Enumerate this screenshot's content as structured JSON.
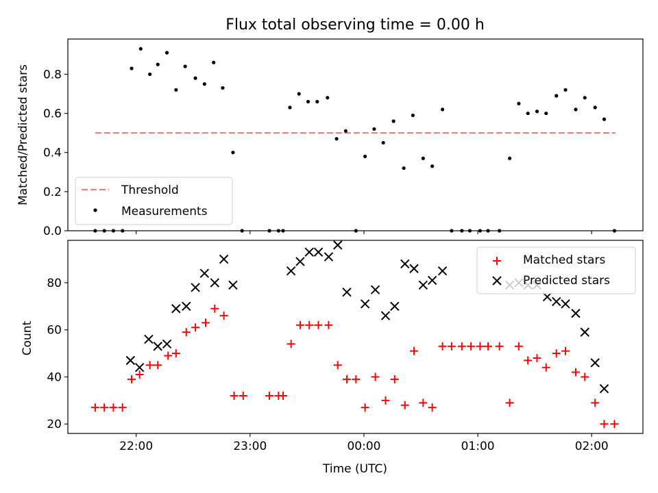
{
  "chart_data": [
    {
      "type": "scatter",
      "title": "Flux total observing time = 0.00 h",
      "xlabel": "",
      "ylabel": "Matched/Predicted stars",
      "x_unit": "hours past 21:00 UTC",
      "xlim": [
        0.4,
        5.45
      ],
      "ylim": [
        0.0,
        0.98
      ],
      "yticks": [
        0.0,
        0.2,
        0.4,
        0.6,
        0.8
      ],
      "ytick_labels": [
        "0.0",
        "0.2",
        "0.4",
        "0.6",
        "0.8"
      ],
      "grid": false,
      "legend": {
        "placement": "lower-left",
        "entries": [
          "Threshold",
          "Measurements"
        ]
      },
      "threshold": {
        "name": "Threshold",
        "y": 0.5,
        "x_start": 0.64,
        "x_end": 5.21,
        "color": "#f08080"
      },
      "series": [
        {
          "name": "Measurements",
          "color": "#000000",
          "points": [
            [
              0.64,
              0.0
            ],
            [
              0.72,
              0.0
            ],
            [
              0.8,
              0.0
            ],
            [
              0.88,
              0.0
            ],
            [
              0.96,
              0.83
            ],
            [
              1.04,
              0.93
            ],
            [
              1.12,
              0.8
            ],
            [
              1.19,
              0.85
            ],
            [
              1.27,
              0.91
            ],
            [
              1.35,
              0.72
            ],
            [
              1.43,
              0.84
            ],
            [
              1.52,
              0.78
            ],
            [
              1.6,
              0.75
            ],
            [
              1.68,
              0.86
            ],
            [
              1.76,
              0.73
            ],
            [
              1.85,
              0.4
            ],
            [
              1.93,
              0.0
            ],
            [
              2.17,
              0.0
            ],
            [
              2.25,
              0.0
            ],
            [
              2.29,
              0.0
            ],
            [
              2.35,
              0.63
            ],
            [
              2.43,
              0.7
            ],
            [
              2.51,
              0.66
            ],
            [
              2.59,
              0.66
            ],
            [
              2.68,
              0.68
            ],
            [
              2.76,
              0.47
            ],
            [
              2.84,
              0.51
            ],
            [
              2.93,
              0.0
            ],
            [
              3.01,
              0.38
            ],
            [
              3.09,
              0.52
            ],
            [
              3.17,
              0.45
            ],
            [
              3.26,
              0.56
            ],
            [
              3.35,
              0.32
            ],
            [
              3.43,
              0.59
            ],
            [
              3.52,
              0.37
            ],
            [
              3.6,
              0.33
            ],
            [
              3.69,
              0.62
            ],
            [
              3.77,
              0.0
            ],
            [
              3.86,
              0.0
            ],
            [
              3.93,
              0.0
            ],
            [
              4.02,
              0.0
            ],
            [
              4.09,
              0.0
            ],
            [
              4.19,
              0.0
            ],
            [
              4.28,
              0.37
            ],
            [
              4.36,
              0.65
            ],
            [
              4.44,
              0.6
            ],
            [
              4.52,
              0.61
            ],
            [
              4.6,
              0.6
            ],
            [
              4.69,
              0.69
            ],
            [
              4.77,
              0.72
            ],
            [
              4.86,
              0.62
            ],
            [
              4.94,
              0.68
            ],
            [
              5.03,
              0.63
            ],
            [
              5.11,
              0.57
            ],
            [
              5.2,
              0.0
            ]
          ]
        }
      ]
    },
    {
      "type": "scatter",
      "title": "",
      "xlabel": "Time (UTC)",
      "ylabel": "Count",
      "x_unit": "hours past 21:00 UTC",
      "xlim": [
        0.4,
        5.45
      ],
      "ylim": [
        16,
        98
      ],
      "yticks": [
        20,
        40,
        60,
        80
      ],
      "ytick_labels": [
        "20",
        "40",
        "60",
        "80"
      ],
      "xticks": [
        1,
        2,
        3,
        4,
        5
      ],
      "xtick_labels": [
        "22:00",
        "23:00",
        "00:00",
        "01:00",
        "02:00"
      ],
      "grid": false,
      "legend": {
        "placement": "upper-right",
        "entries": [
          "Matched stars",
          "Predicted stars"
        ]
      },
      "series": [
        {
          "name": "Matched stars",
          "marker": "plus",
          "color": "#ff0000",
          "points": [
            [
              0.64,
              27
            ],
            [
              0.72,
              27
            ],
            [
              0.8,
              27
            ],
            [
              0.88,
              27
            ],
            [
              0.96,
              39
            ],
            [
              1.03,
              41
            ],
            [
              1.12,
              45
            ],
            [
              1.19,
              45
            ],
            [
              1.28,
              49
            ],
            [
              1.35,
              50
            ],
            [
              1.44,
              59
            ],
            [
              1.52,
              61
            ],
            [
              1.61,
              63
            ],
            [
              1.69,
              69
            ],
            [
              1.77,
              66
            ],
            [
              1.86,
              32
            ],
            [
              1.94,
              32
            ],
            [
              2.17,
              32
            ],
            [
              2.25,
              32
            ],
            [
              2.29,
              32
            ],
            [
              2.36,
              54
            ],
            [
              2.44,
              62
            ],
            [
              2.52,
              62
            ],
            [
              2.6,
              62
            ],
            [
              2.69,
              62
            ],
            [
              2.77,
              45
            ],
            [
              2.85,
              39
            ],
            [
              2.93,
              39
            ],
            [
              3.01,
              27
            ],
            [
              3.1,
              40
            ],
            [
              3.19,
              30
            ],
            [
              3.27,
              39
            ],
            [
              3.36,
              28
            ],
            [
              3.44,
              51
            ],
            [
              3.52,
              29
            ],
            [
              3.6,
              27
            ],
            [
              3.69,
              53
            ],
            [
              3.77,
              53
            ],
            [
              3.86,
              53
            ],
            [
              3.94,
              53
            ],
            [
              4.02,
              53
            ],
            [
              4.09,
              53
            ],
            [
              4.19,
              53
            ],
            [
              4.28,
              29
            ],
            [
              4.36,
              53
            ],
            [
              4.44,
              47
            ],
            [
              4.52,
              48
            ],
            [
              4.6,
              44
            ],
            [
              4.69,
              50
            ],
            [
              4.77,
              51
            ],
            [
              4.86,
              42
            ],
            [
              4.94,
              40
            ],
            [
              5.03,
              29
            ],
            [
              5.11,
              20
            ],
            [
              5.2,
              20
            ]
          ]
        },
        {
          "name": "Predicted stars",
          "marker": "x",
          "color": "#000000",
          "points": [
            [
              0.95,
              47
            ],
            [
              1.03,
              44
            ],
            [
              1.11,
              56
            ],
            [
              1.19,
              53
            ],
            [
              1.27,
              54
            ],
            [
              1.35,
              69
            ],
            [
              1.44,
              70
            ],
            [
              1.52,
              78
            ],
            [
              1.6,
              84
            ],
            [
              1.69,
              80
            ],
            [
              1.77,
              90
            ],
            [
              1.85,
              79
            ],
            [
              2.36,
              85
            ],
            [
              2.44,
              89
            ],
            [
              2.52,
              93
            ],
            [
              2.6,
              93
            ],
            [
              2.69,
              91
            ],
            [
              2.77,
              96
            ],
            [
              2.85,
              76
            ],
            [
              3.01,
              71
            ],
            [
              3.1,
              77
            ],
            [
              3.19,
              66
            ],
            [
              3.27,
              70
            ],
            [
              3.36,
              88
            ],
            [
              3.44,
              86
            ],
            [
              3.52,
              79
            ],
            [
              3.6,
              81
            ],
            [
              3.69,
              85
            ],
            [
              4.28,
              79
            ],
            [
              4.36,
              80
            ],
            [
              4.44,
              79
            ],
            [
              4.52,
              79
            ],
            [
              4.61,
              74
            ],
            [
              4.69,
              72
            ],
            [
              4.77,
              71
            ],
            [
              4.86,
              67
            ],
            [
              4.94,
              59
            ],
            [
              5.03,
              46
            ],
            [
              5.11,
              35
            ]
          ]
        }
      ]
    }
  ]
}
